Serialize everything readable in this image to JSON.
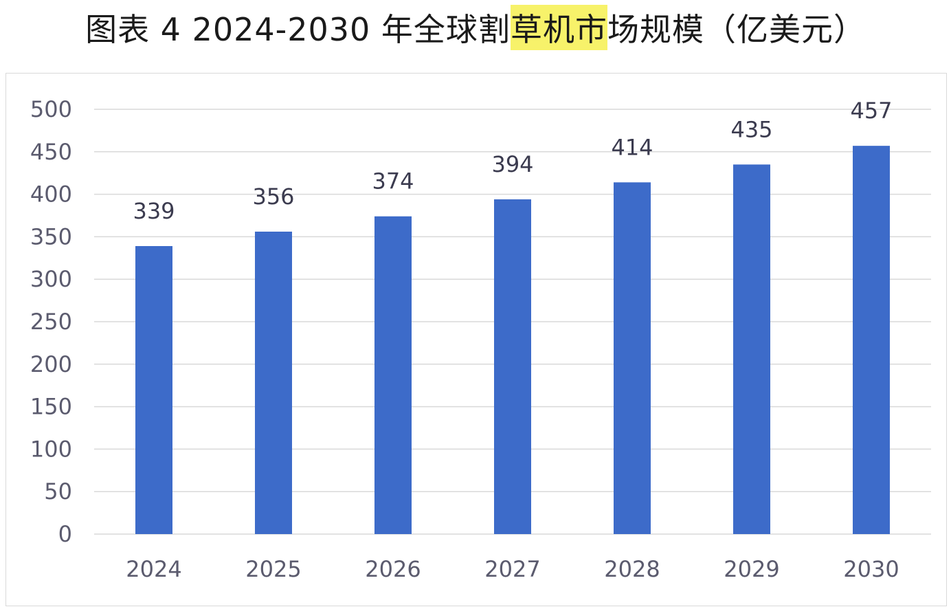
{
  "title": {
    "prefix": "图表 4 2024-2030 年全球割",
    "highlight": "草机市",
    "suffix": "场规模（亿美元）"
  },
  "colors": {
    "bar": "#3d6bc9",
    "grid": "#d9d9d9",
    "highlight": "#f7f26a"
  },
  "chart_data": {
    "type": "bar",
    "title": "图表 4 2024-2030 年全球割草机市场规模（亿美元）",
    "categories": [
      "2024",
      "2025",
      "2026",
      "2027",
      "2028",
      "2029",
      "2030"
    ],
    "values": [
      339,
      356,
      374,
      394,
      414,
      435,
      457
    ],
    "data_labels": [
      "339",
      "356",
      "374",
      "394",
      "414",
      "435",
      "457"
    ],
    "ylim": [
      0,
      500
    ],
    "yticks": [
      0,
      50,
      100,
      150,
      200,
      250,
      300,
      350,
      400,
      450,
      500
    ],
    "xlabel": "",
    "ylabel": "",
    "grid": true,
    "legend": "none"
  }
}
